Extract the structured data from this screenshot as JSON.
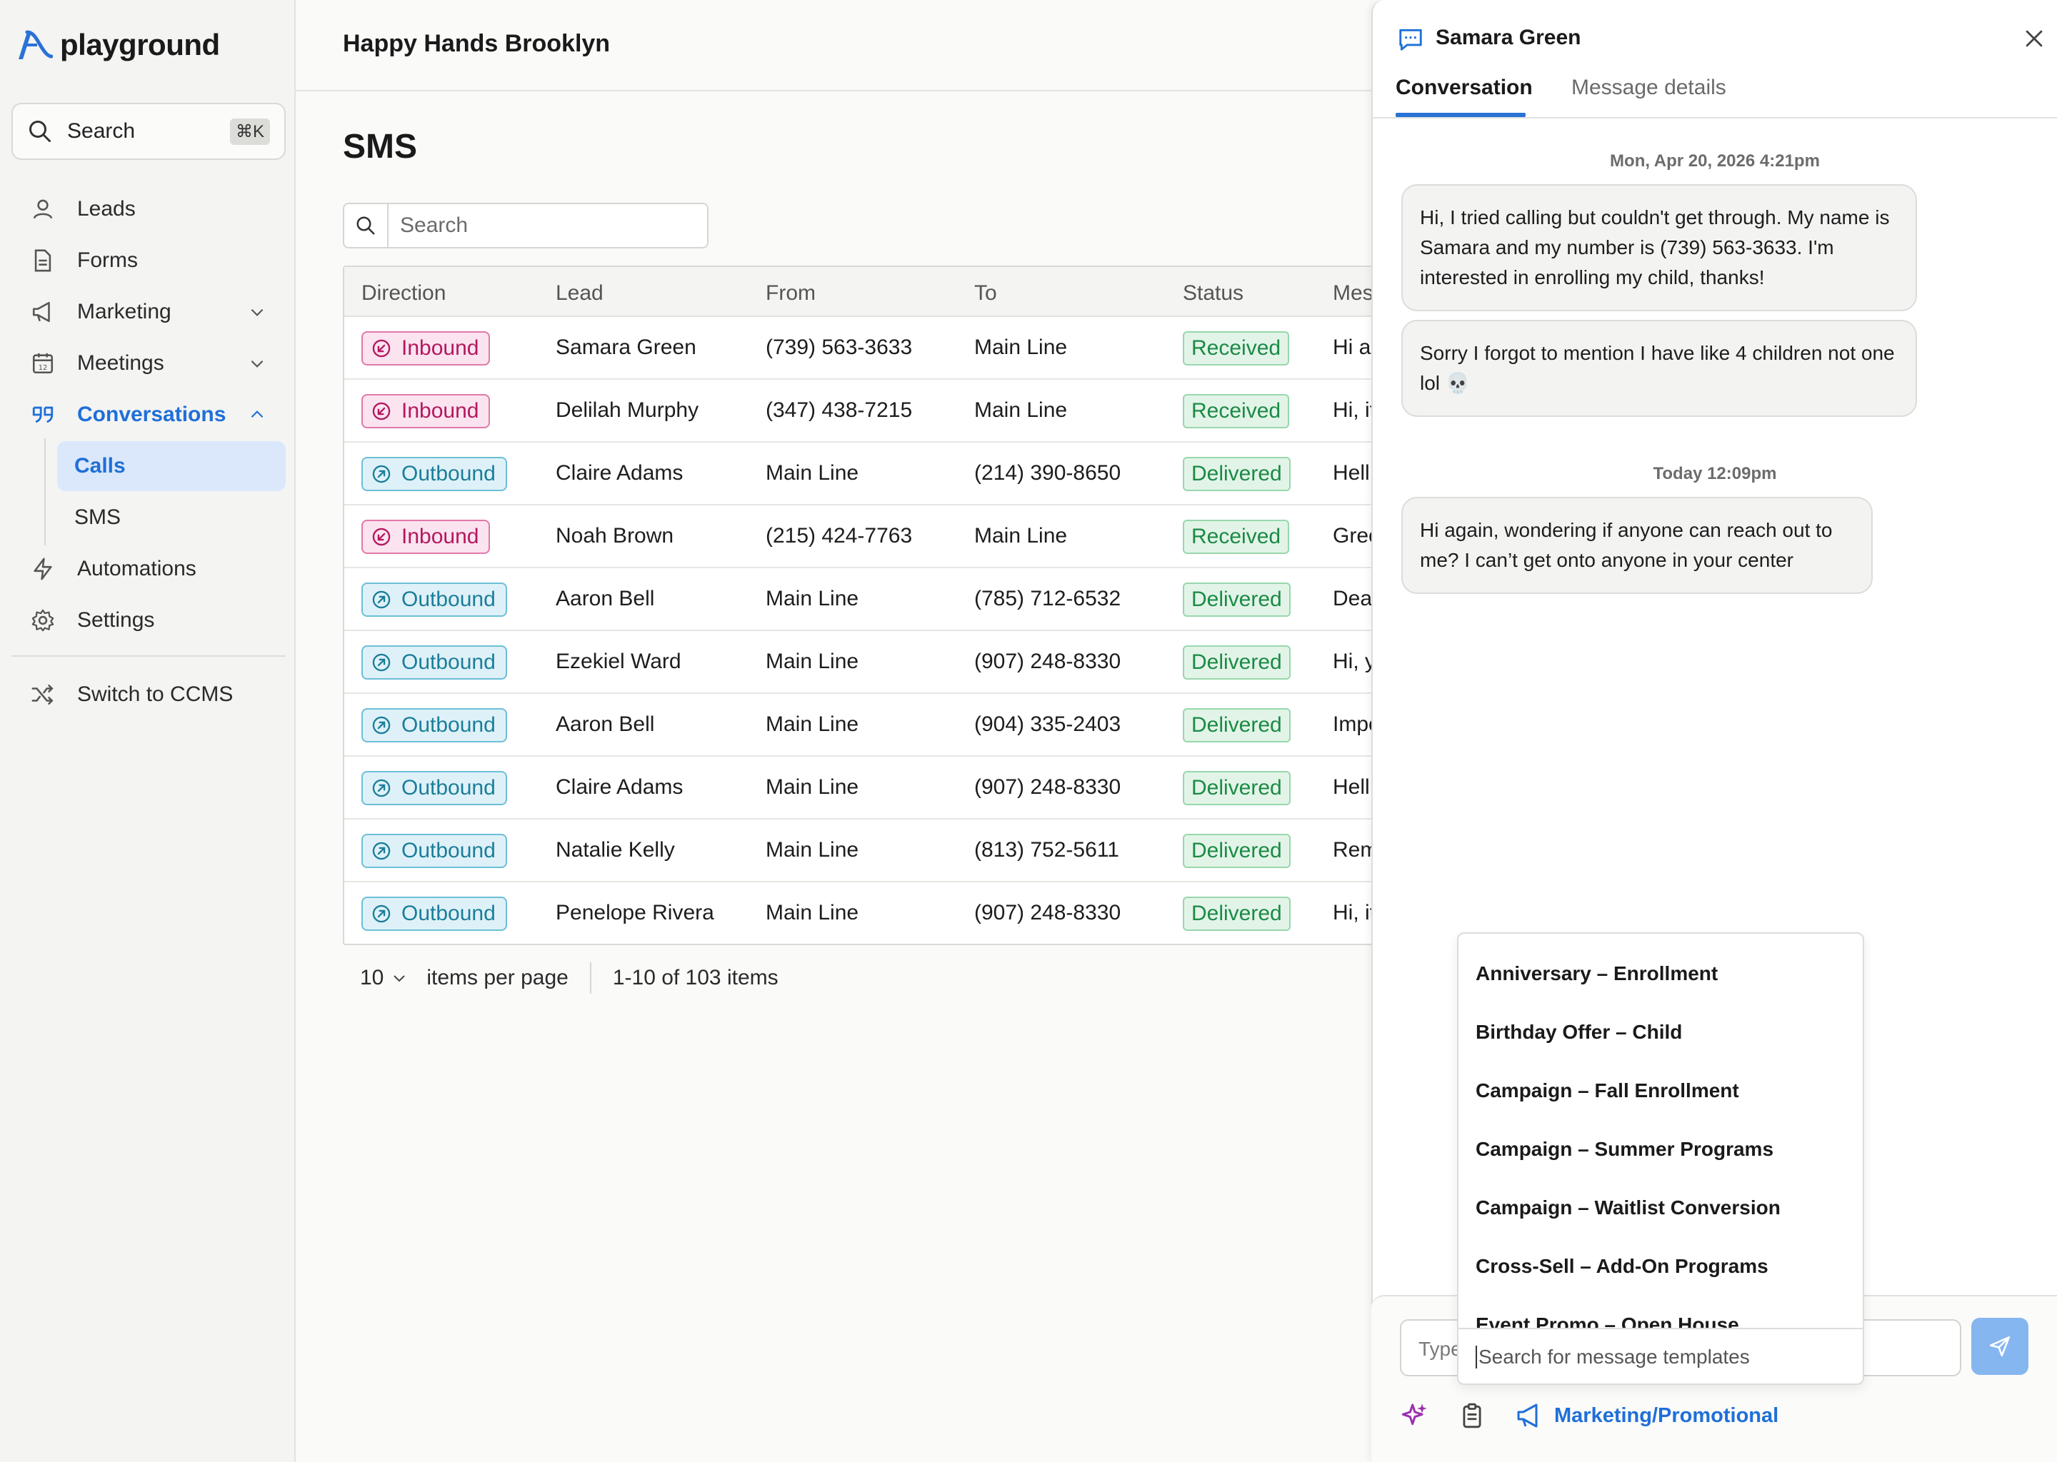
{
  "app": {
    "logo_text": "playground"
  },
  "sidebar": {
    "search_label": "Search",
    "search_shortcut": "⌘K",
    "items": [
      {
        "label": "Leads",
        "icon": "user-icon"
      },
      {
        "label": "Forms",
        "icon": "document-icon"
      },
      {
        "label": "Marketing",
        "icon": "megaphone-icon"
      },
      {
        "label": "Meetings",
        "icon": "calendar-icon"
      },
      {
        "label": "Conversations",
        "icon": "quote-icon"
      },
      {
        "label": "Automations",
        "icon": "bolt-icon"
      },
      {
        "label": "Settings",
        "icon": "gear-icon"
      }
    ],
    "subitems": [
      {
        "label": "Calls"
      },
      {
        "label": "SMS"
      }
    ],
    "switch_label": "Switch to CCMS"
  },
  "header": {
    "org": "Happy Hands Brooklyn"
  },
  "page": {
    "title": "SMS",
    "search_placeholder": "Search"
  },
  "table": {
    "columns": [
      "Direction",
      "Lead",
      "From",
      "To",
      "Status",
      "Mes"
    ],
    "rows": [
      {
        "direction": "Inbound",
        "lead": "Samara Green",
        "from": "(739) 563-3633",
        "to": "Main Line",
        "status": "Received",
        "message": "Hi ag"
      },
      {
        "direction": "Inbound",
        "lead": "Delilah Murphy",
        "from": "(347) 438-7215",
        "to": "Main Line",
        "status": "Received",
        "message": "Hi, it"
      },
      {
        "direction": "Outbound",
        "lead": "Claire Adams",
        "from": "Main Line",
        "to": "(214) 390-8650",
        "status": "Delivered",
        "message": "Hell"
      },
      {
        "direction": "Inbound",
        "lead": "Noah Brown",
        "from": "(215) 424-7763",
        "to": "Main Line",
        "status": "Received",
        "message": "Gree"
      },
      {
        "direction": "Outbound",
        "lead": "Aaron Bell",
        "from": "Main Line",
        "to": "(785) 712-6532",
        "status": "Delivered",
        "message": "Dear"
      },
      {
        "direction": "Outbound",
        "lead": "Ezekiel Ward",
        "from": "Main Line",
        "to": "(907) 248-8330",
        "status": "Delivered",
        "message": "Hi, y"
      },
      {
        "direction": "Outbound",
        "lead": "Aaron Bell",
        "from": "Main Line",
        "to": "(904) 335-2403",
        "status": "Delivered",
        "message": "Impo"
      },
      {
        "direction": "Outbound",
        "lead": "Claire Adams",
        "from": "Main Line",
        "to": "(907) 248-8330",
        "status": "Delivered",
        "message": "Hell"
      },
      {
        "direction": "Outbound",
        "lead": "Natalie Kelly",
        "from": "Main Line",
        "to": "(813) 752-5611",
        "status": "Delivered",
        "message": "Rem"
      },
      {
        "direction": "Outbound",
        "lead": "Penelope Rivera",
        "from": "Main Line",
        "to": "(907) 248-8330",
        "status": "Delivered",
        "message": "Hi, it"
      }
    ]
  },
  "pager": {
    "per_page": "10",
    "per_page_label": "items per page",
    "range": "1-10 of 103 items"
  },
  "panel": {
    "contact_name": "Samara Green",
    "tabs": [
      "Conversation",
      "Message details"
    ],
    "timestamps": [
      "Mon, Apr 20, 2026 4:21pm",
      "Today 12:09pm"
    ],
    "messages": [
      {
        "text": "Hi, I tried calling but couldn't get through. My name is Samara and my number is (739) 563-3633. I'm interested in enrolling my child, thanks!"
      },
      {
        "text": "Sorry I forgot to mention I have like 4 children not one lol 💀"
      },
      {
        "text": "Hi again, wondering if anyone can reach out to me? I can’t get onto anyone in your center"
      }
    ],
    "templates": [
      "Anniversary – Enrollment",
      "Birthday Offer – Child",
      "Campaign – Fall Enrollment",
      "Campaign – Summer Programs",
      "Campaign – Waitlist Conversion",
      "Cross-Sell – Add-On Programs",
      "Event Promo – Open House"
    ],
    "template_search_placeholder": "Search for message templates",
    "compose_placeholder": "Type",
    "category_label": "Marketing/Promotional"
  },
  "colors": {
    "accent": "#1f6fd8",
    "inbound": "#b3185f",
    "outbound": "#1a7e9a",
    "status_green": "#1b8a45"
  }
}
